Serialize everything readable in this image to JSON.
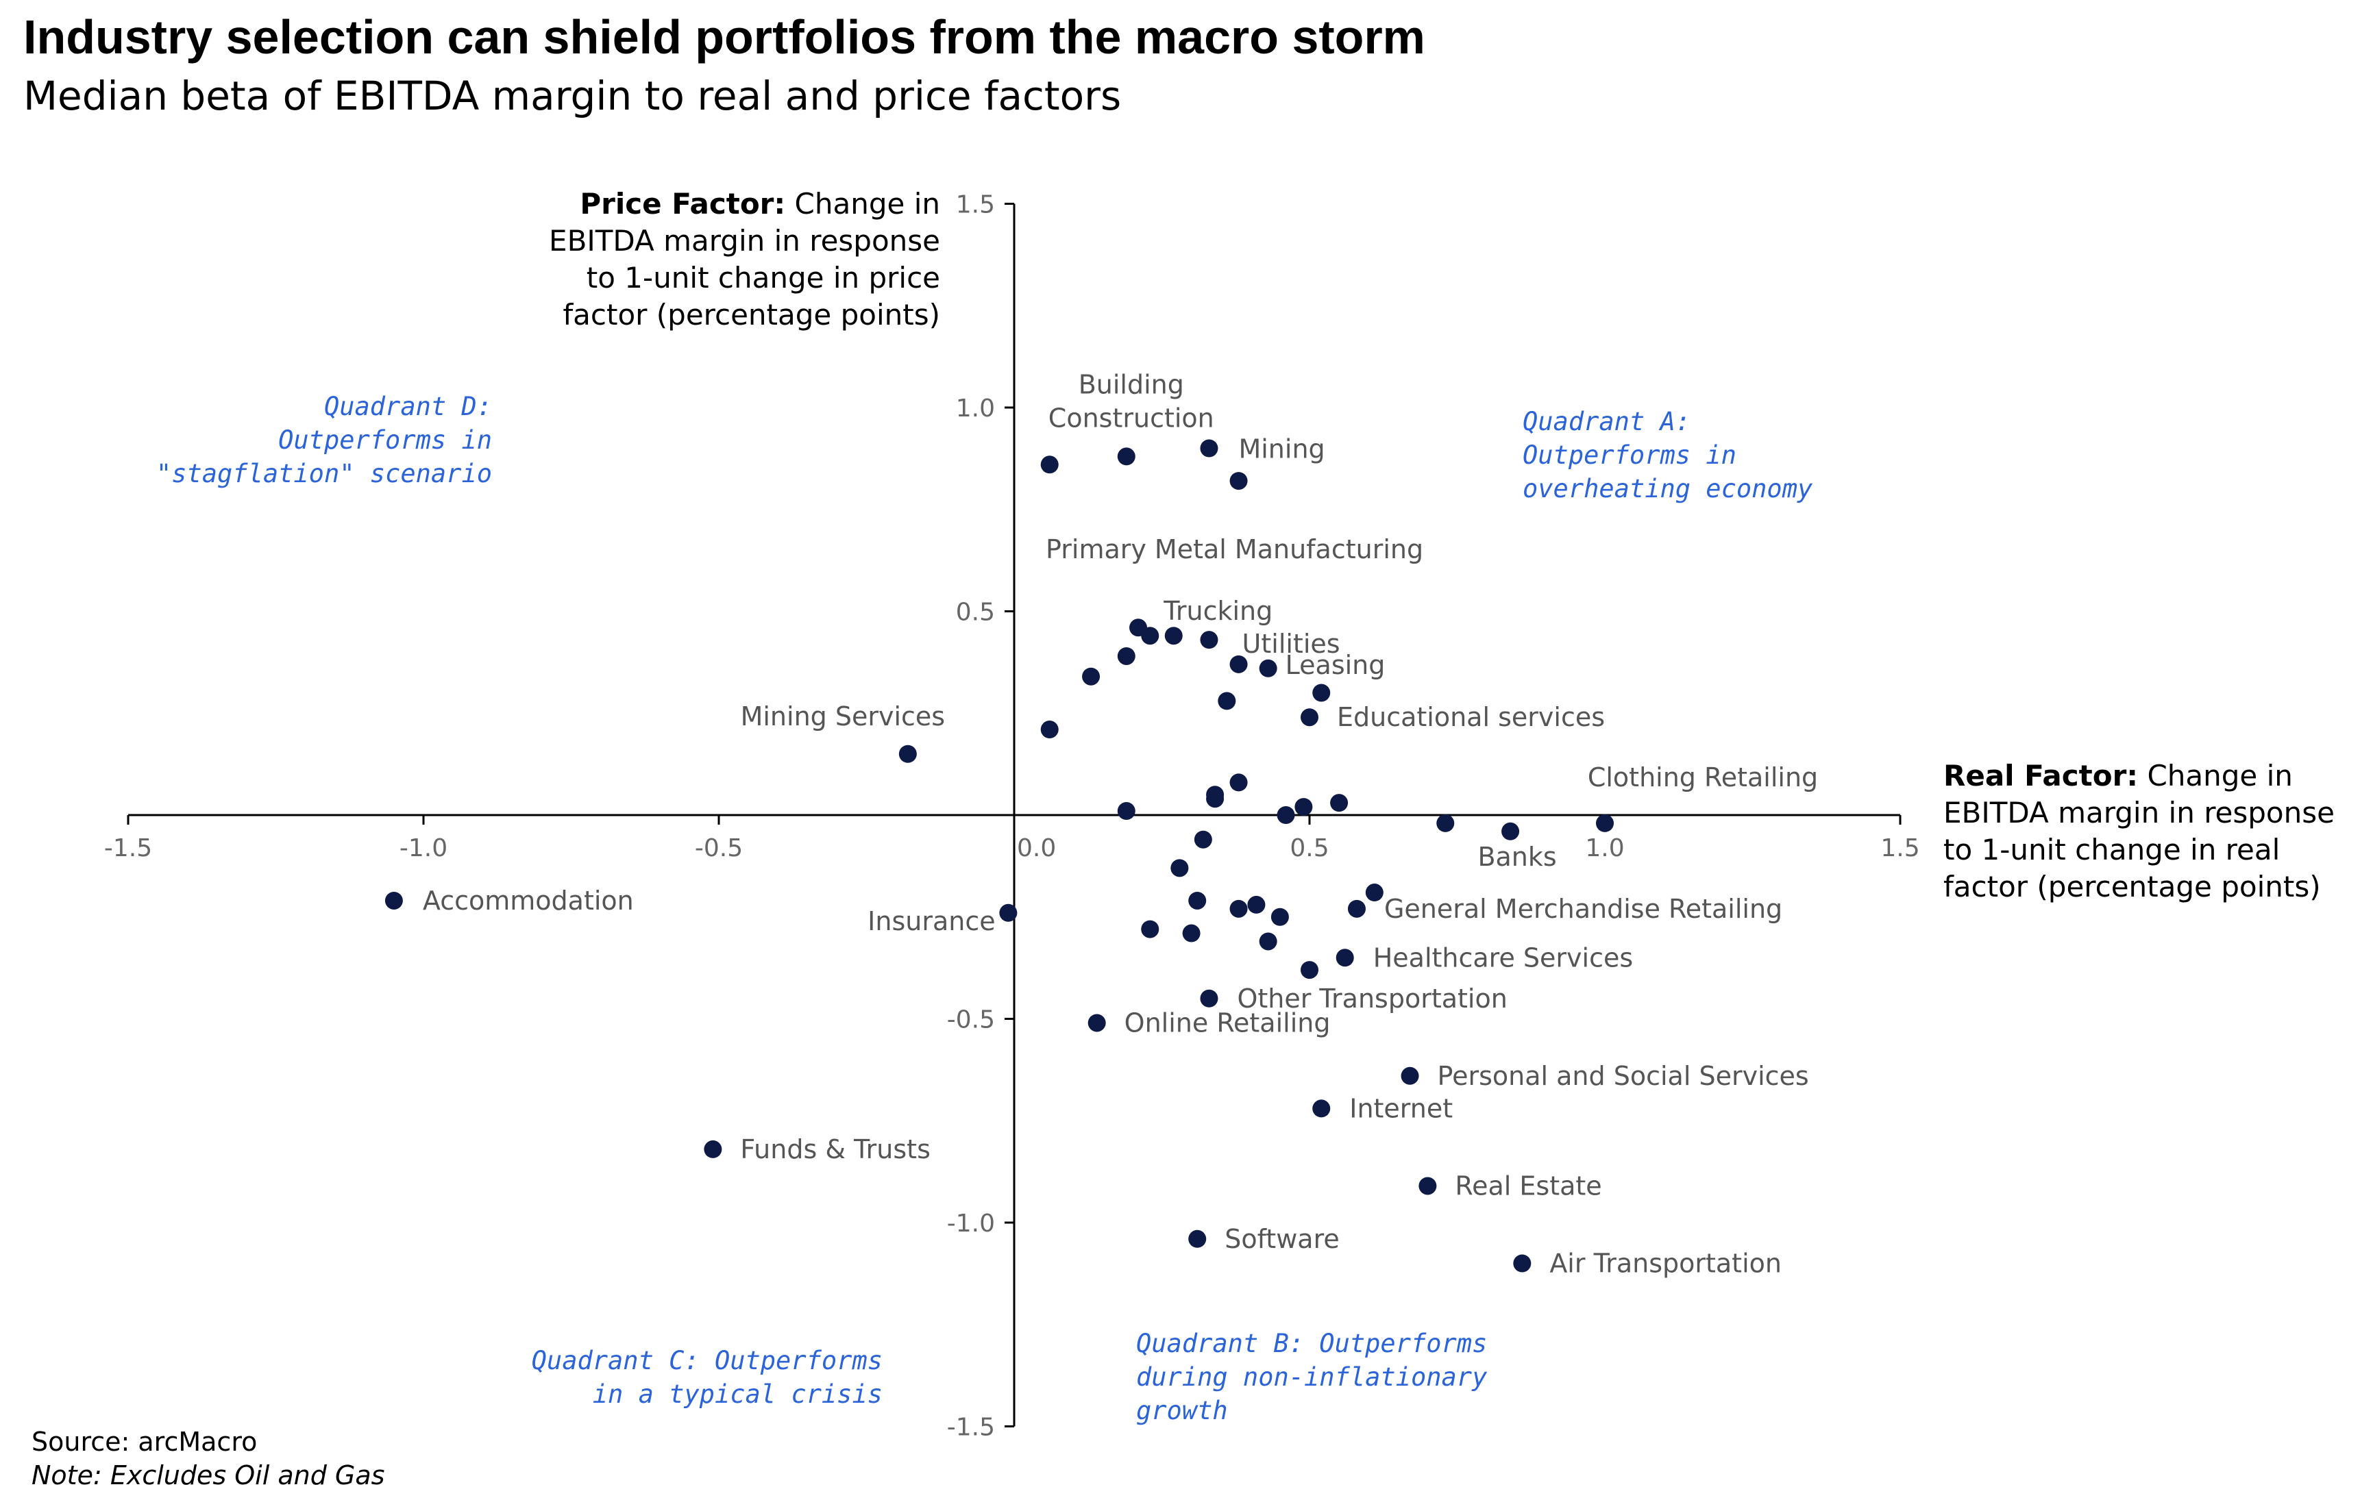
{
  "title": "Industry selection can shield portfolios from the macro storm",
  "subtitle": "Median beta of EBITDA margin to real and price factors",
  "source": "Source: arcMacro",
  "note": "Note: Excludes Oil and Gas",
  "colors": {
    "point": "#0d1a45",
    "quadrant_text": "#2b63d8",
    "axis": "#000000"
  },
  "chart_data": {
    "type": "scatter",
    "xlim": [
      -1.5,
      1.5
    ],
    "ylim": [
      -1.5,
      1.5
    ],
    "x_ticks": [
      "-1.5",
      "-1.0",
      "-0.5",
      "0.0",
      "0.5",
      "1.0",
      "1.5"
    ],
    "y_ticks": [
      "1.5",
      "1.0",
      "0.5",
      "0.0",
      "-0.5",
      "-1.0",
      "-1.5"
    ],
    "grid": false,
    "xlabel": {
      "bold": "Real Factor:",
      "rest": [
        " Change in",
        "EBITDA margin in response",
        "to 1-unit change in real",
        "factor (percentage points)"
      ]
    },
    "ylabel": {
      "bold": "Price Factor:",
      "rest": [
        " Change in",
        "EBITDA margin in response",
        "to 1-unit change in price",
        "factor (percentage points)"
      ]
    },
    "quadrants": [
      {
        "id": "A",
        "lines": [
          "Quadrant A:",
          "Outperforms in",
          "overheating economy"
        ]
      },
      {
        "id": "B",
        "lines": [
          "Quadrant B: Outperforms",
          "during non-inflationary",
          "growth"
        ]
      },
      {
        "id": "C",
        "lines": [
          "Quadrant C: Outperforms",
          "in a typical crisis"
        ]
      },
      {
        "id": "D",
        "lines": [
          "Quadrant D:",
          "Outperforms in",
          "\"stagflation\" scenario"
        ]
      }
    ],
    "points": [
      {
        "x": 0.06,
        "y": 0.86
      },
      {
        "x": 0.19,
        "y": 0.88,
        "label": [
          "Building",
          "Construction"
        ]
      },
      {
        "x": 0.33,
        "y": 0.9,
        "label": [
          "Mining"
        ]
      },
      {
        "x": 0.38,
        "y": 0.82,
        "label": [
          "Primary Metal Manufacturing"
        ]
      },
      {
        "x": 0.21,
        "y": 0.46
      },
      {
        "x": 0.23,
        "y": 0.44
      },
      {
        "x": 0.27,
        "y": 0.44,
        "label": [
          "Trucking"
        ]
      },
      {
        "x": 0.33,
        "y": 0.43
      },
      {
        "x": 0.19,
        "y": 0.39
      },
      {
        "x": 0.13,
        "y": 0.34
      },
      {
        "x": 0.38,
        "y": 0.37,
        "label": [
          "Utilities"
        ]
      },
      {
        "x": 0.43,
        "y": 0.36,
        "label": [
          "Leasing"
        ]
      },
      {
        "x": 0.52,
        "y": 0.3
      },
      {
        "x": 0.36,
        "y": 0.28
      },
      {
        "x": 0.5,
        "y": 0.24,
        "label": [
          "Educational services"
        ]
      },
      {
        "x": 0.06,
        "y": 0.21
      },
      {
        "x": -0.18,
        "y": 0.15,
        "label": [
          "Mining Services"
        ]
      },
      {
        "x": 0.38,
        "y": 0.08
      },
      {
        "x": 0.34,
        "y": 0.05
      },
      {
        "x": 0.34,
        "y": 0.04
      },
      {
        "x": 0.55,
        "y": 0.03
      },
      {
        "x": 0.49,
        "y": 0.02
      },
      {
        "x": 0.19,
        "y": 0.01
      },
      {
        "x": 0.46,
        "y": 0.0
      },
      {
        "x": 0.73,
        "y": -0.02
      },
      {
        "x": 0.84,
        "y": -0.04,
        "label": [
          "Banks"
        ]
      },
      {
        "x": 1.0,
        "y": -0.02,
        "label": [
          "Clothing Retailing"
        ]
      },
      {
        "x": 0.32,
        "y": -0.06
      },
      {
        "x": 0.28,
        "y": -0.13
      },
      {
        "x": -1.05,
        "y": -0.21,
        "label": [
          "Accommodation"
        ]
      },
      {
        "x": 0.61,
        "y": -0.19
      },
      {
        "x": 0.31,
        "y": -0.21
      },
      {
        "x": 0.58,
        "y": -0.23,
        "label": [
          "General Merchandise Retailing"
        ]
      },
      {
        "x": 0.38,
        "y": -0.23
      },
      {
        "x": 0.41,
        "y": -0.22
      },
      {
        "x": -0.01,
        "y": -0.24,
        "label": [
          "Insurance"
        ]
      },
      {
        "x": 0.45,
        "y": -0.25
      },
      {
        "x": 0.23,
        "y": -0.28
      },
      {
        "x": 0.3,
        "y": -0.29
      },
      {
        "x": 0.43,
        "y": -0.31
      },
      {
        "x": 0.56,
        "y": -0.35,
        "label": [
          "Healthcare Services"
        ]
      },
      {
        "x": 0.5,
        "y": -0.38
      },
      {
        "x": 0.33,
        "y": -0.45,
        "label": [
          "Other Transportation"
        ]
      },
      {
        "x": 0.14,
        "y": -0.51,
        "label": [
          "Online Retailing"
        ]
      },
      {
        "x": 0.67,
        "y": -0.64,
        "label": [
          "Personal and Social Services"
        ]
      },
      {
        "x": 0.52,
        "y": -0.72,
        "label": [
          "Internet"
        ]
      },
      {
        "x": -0.51,
        "y": -0.82,
        "label": [
          "Funds & Trusts"
        ]
      },
      {
        "x": 0.7,
        "y": -0.91,
        "label": [
          "Real Estate"
        ]
      },
      {
        "x": 0.31,
        "y": -1.04,
        "label": [
          "Software"
        ]
      },
      {
        "x": 0.86,
        "y": -1.1,
        "label": [
          "Air Transportation"
        ]
      }
    ]
  }
}
